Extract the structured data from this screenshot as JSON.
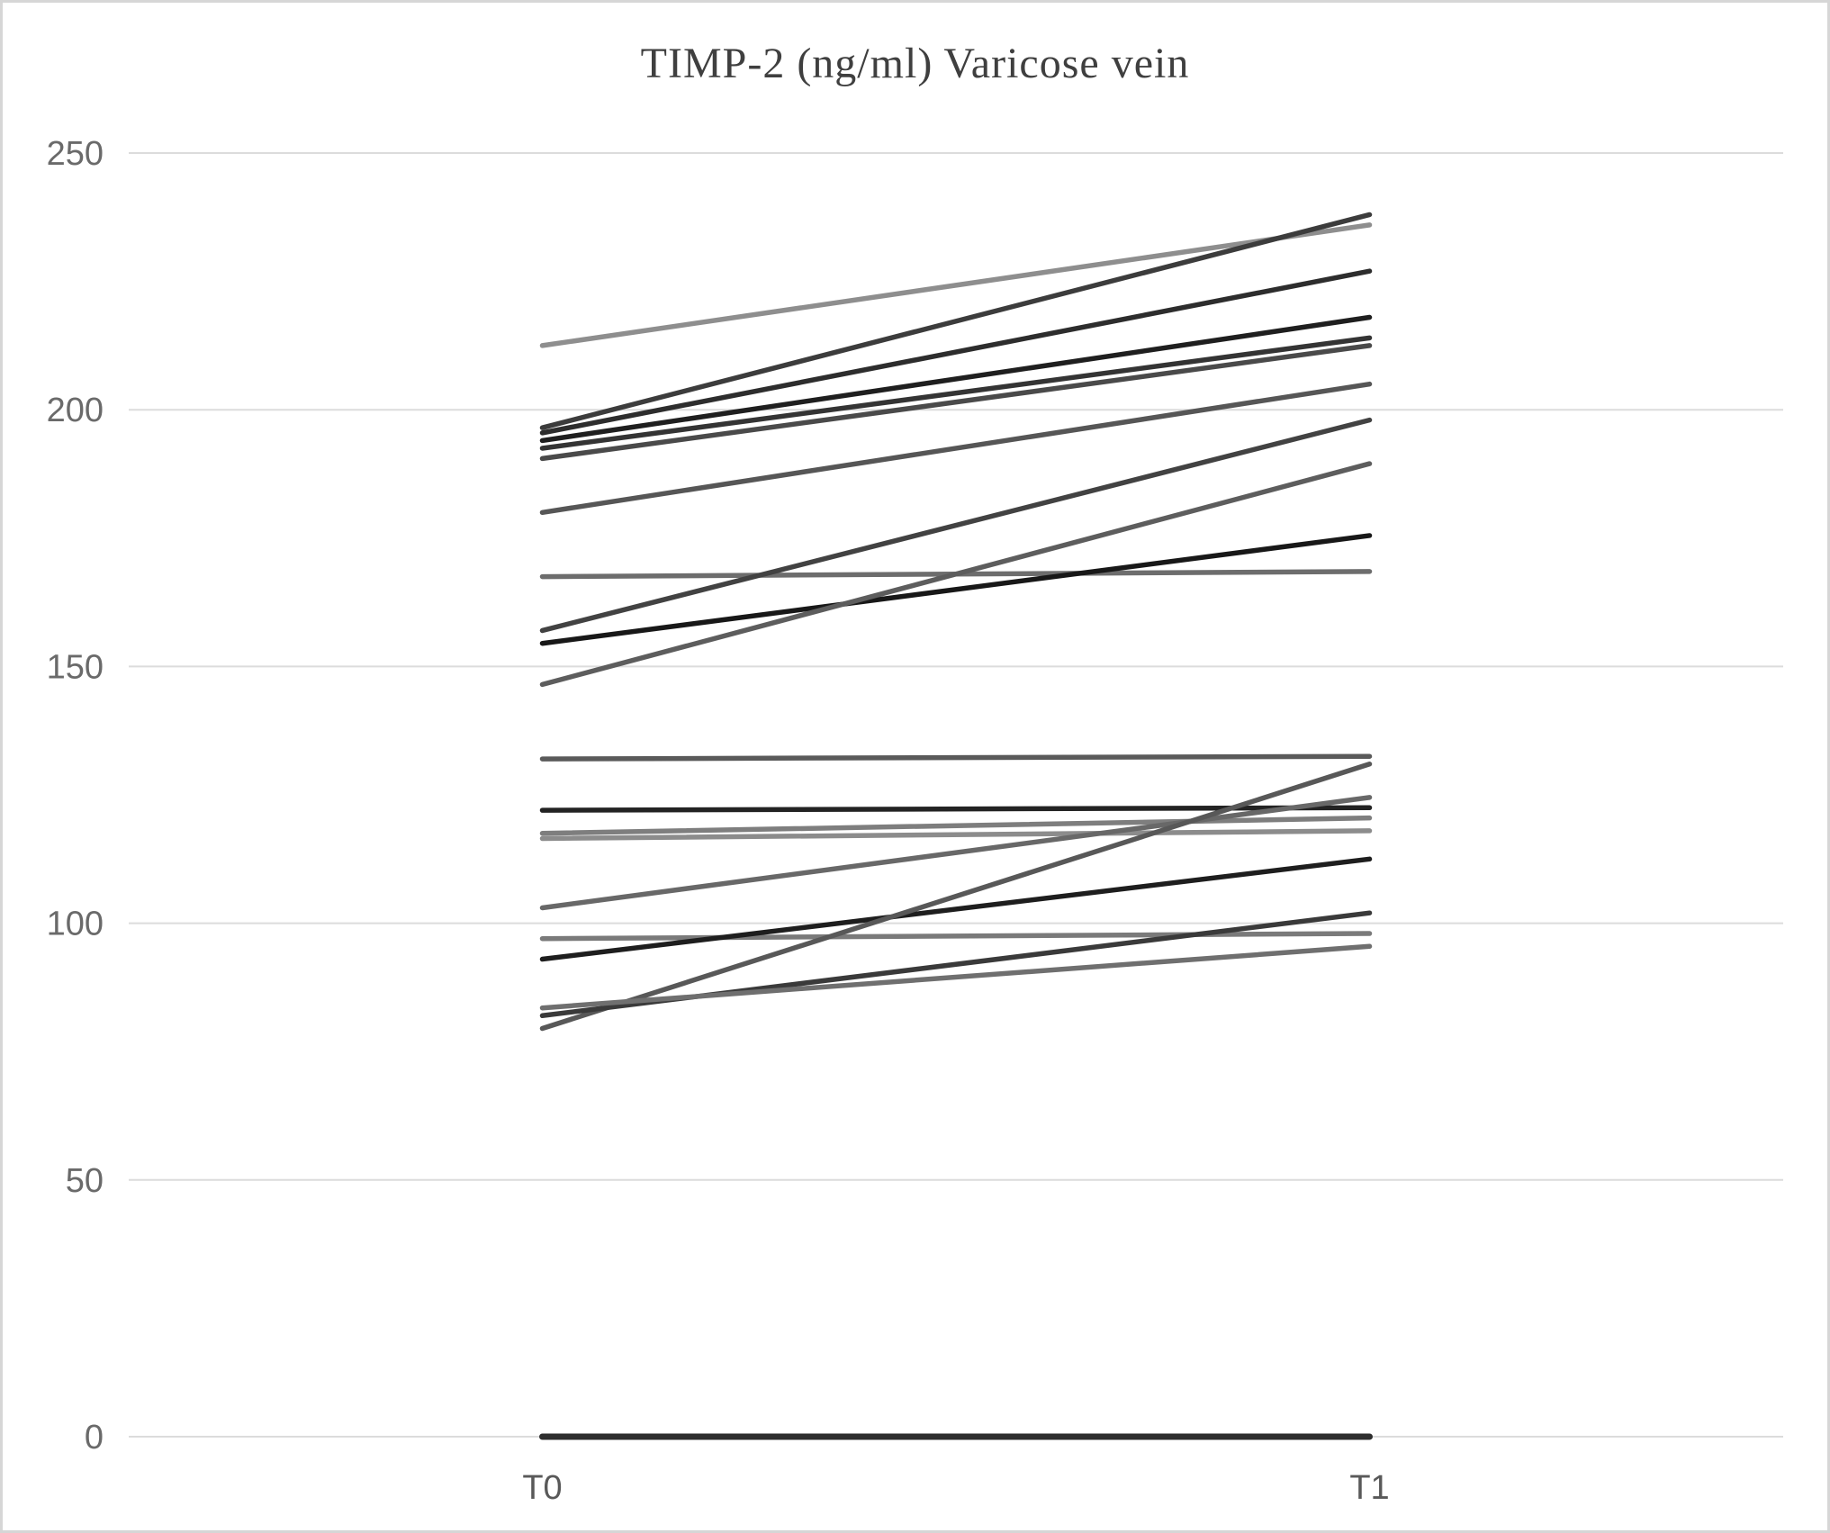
{
  "chart_data": {
    "type": "line",
    "title": "TIMP-2 (ng/ml) Varicose vein",
    "xlabel": "",
    "ylabel": "",
    "categories": [
      "T0",
      "T1"
    ],
    "ylim": [
      0,
      250
    ],
    "yticks": [
      0,
      50,
      100,
      150,
      200,
      250
    ],
    "grid": true,
    "legend": "none",
    "series": [
      {
        "name": "line-1",
        "values": [
          212.5,
          236
        ],
        "color": "#8e8e8e"
      },
      {
        "name": "line-2",
        "values": [
          196.5,
          238
        ],
        "color": "#3c3c3c"
      },
      {
        "name": "line-3",
        "values": [
          195.5,
          227
        ],
        "color": "#2d2d2d"
      },
      {
        "name": "line-4",
        "values": [
          194,
          218
        ],
        "color": "#1f1f1f"
      },
      {
        "name": "line-5",
        "values": [
          192.5,
          214
        ],
        "color": "#343434"
      },
      {
        "name": "line-6",
        "values": [
          190.5,
          212.5
        ],
        "color": "#4a4a4a"
      },
      {
        "name": "line-7",
        "values": [
          180,
          205
        ],
        "color": "#565656"
      },
      {
        "name": "line-8",
        "values": [
          167.5,
          168.5
        ],
        "color": "#6d6d6d"
      },
      {
        "name": "line-9",
        "values": [
          157,
          198
        ],
        "color": "#424242"
      },
      {
        "name": "line-10",
        "values": [
          154.5,
          175.5
        ],
        "color": "#181818"
      },
      {
        "name": "line-11",
        "values": [
          146.5,
          189.5
        ],
        "color": "#5d5d5d"
      },
      {
        "name": "line-12",
        "values": [
          132,
          132.5
        ],
        "color": "#5a5a5a"
      },
      {
        "name": "line-13",
        "values": [
          122,
          122.5
        ],
        "color": "#232323"
      },
      {
        "name": "line-14",
        "values": [
          117.5,
          120.5
        ],
        "color": "#7e7e7e"
      },
      {
        "name": "line-15",
        "values": [
          116.5,
          118
        ],
        "color": "#8c8c8c"
      },
      {
        "name": "line-16",
        "values": [
          103,
          124.5
        ],
        "color": "#686868"
      },
      {
        "name": "line-17",
        "values": [
          97,
          98
        ],
        "color": "#7a7a7a"
      },
      {
        "name": "line-18",
        "values": [
          93,
          112.5
        ],
        "color": "#1e1e1e"
      },
      {
        "name": "line-19",
        "values": [
          79.5,
          131
        ],
        "color": "#585858"
      },
      {
        "name": "line-20",
        "values": [
          82,
          102
        ],
        "color": "#3a3a3a"
      },
      {
        "name": "line-21",
        "values": [
          83.5,
          95.5
        ],
        "color": "#6f6f6f"
      },
      {
        "name": "line-22",
        "values": [
          0,
          0
        ],
        "color": "#2e2e2e",
        "width": 7
      }
    ]
  },
  "colors": {
    "background": "#ffffff",
    "border": "#d6d6d6",
    "gridline": "#dcdcdc",
    "tick_label": "#6a6a6a",
    "category_label": "#595959",
    "title": "#3f3f3f"
  }
}
